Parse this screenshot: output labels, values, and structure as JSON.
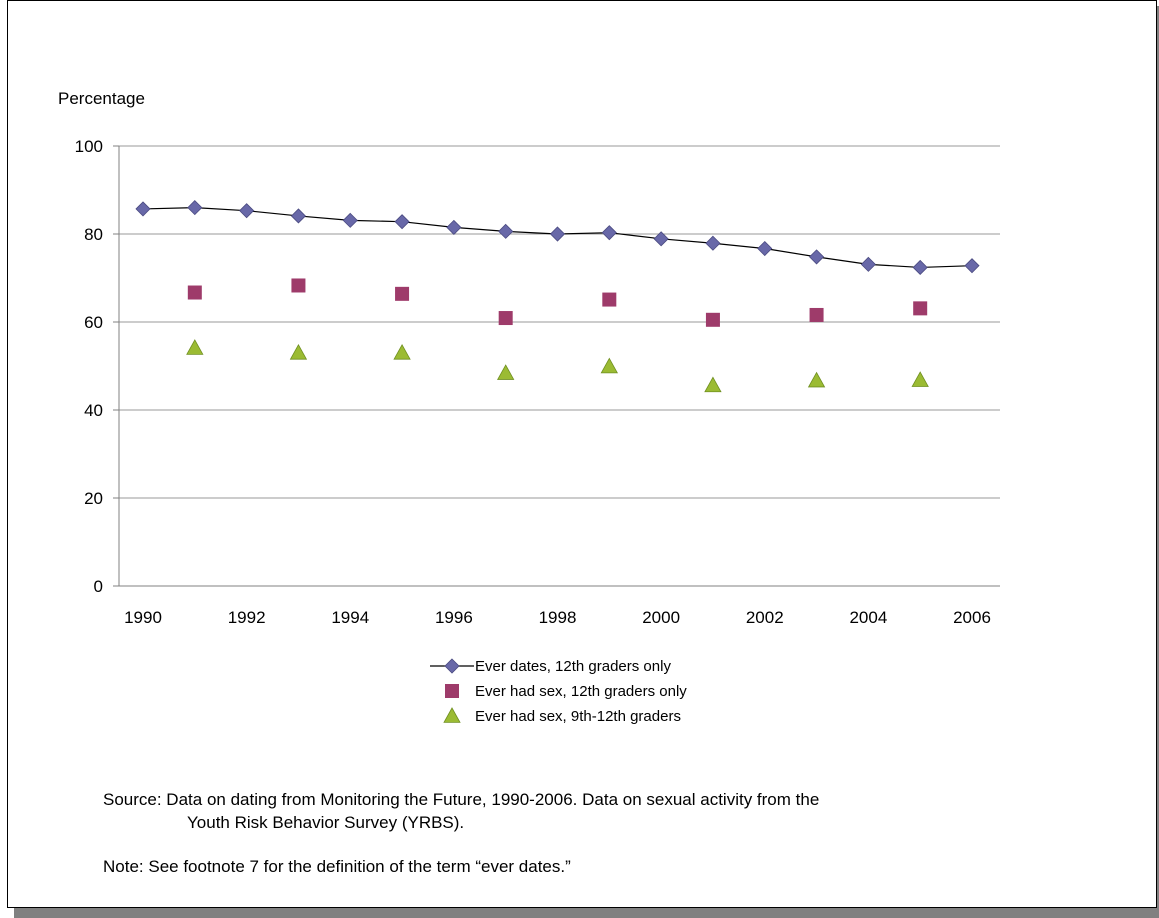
{
  "chart_data": {
    "type": "line",
    "ylabel": "Percentage",
    "ylim": [
      0,
      100
    ],
    "yticks": [
      0,
      20,
      40,
      60,
      80,
      100
    ],
    "xlim": [
      1990,
      2006
    ],
    "xticks": [
      1990,
      1992,
      1994,
      1996,
      1998,
      2000,
      2002,
      2004,
      2006
    ],
    "grid": true,
    "legend_position": "bottom",
    "series": [
      {
        "name": "Ever dates, 12th graders only",
        "marker": "diamond",
        "line": true,
        "color": "#6868a8",
        "x": [
          1990,
          1991,
          1992,
          1993,
          1994,
          1995,
          1996,
          1997,
          1998,
          1999,
          2000,
          2001,
          2002,
          2003,
          2004,
          2005,
          2006
        ],
        "values": [
          85.7,
          86.0,
          85.3,
          84.1,
          83.1,
          82.8,
          81.5,
          80.6,
          80.0,
          80.3,
          78.9,
          77.9,
          76.7,
          74.8,
          73.1,
          72.4,
          72.8
        ]
      },
      {
        "name": "Ever had sex, 12th graders only",
        "marker": "square",
        "line": false,
        "color": "#9e3b6a",
        "x": [
          1991,
          1993,
          1995,
          1997,
          1999,
          2001,
          2003,
          2005
        ],
        "values": [
          66.7,
          68.3,
          66.4,
          60.9,
          65.1,
          60.5,
          61.6,
          63.1
        ]
      },
      {
        "name": "Ever had sex, 9th-12th graders",
        "marker": "triangle",
        "line": false,
        "color": "#9bbb33",
        "x": [
          1991,
          1993,
          1995,
          1997,
          1999,
          2001,
          2003,
          2005
        ],
        "values": [
          54.1,
          53.0,
          53.0,
          48.4,
          49.9,
          45.6,
          46.7,
          46.8
        ]
      }
    ]
  },
  "notes": {
    "source_line1": "Source: Data on dating from Monitoring the Future, 1990-2006.  Data on sexual activity from the",
    "source_line2": "Youth Risk Behavior Survey (YRBS).",
    "note": "Note:  See footnote 7 for the definition of the term “ever dates.”"
  }
}
